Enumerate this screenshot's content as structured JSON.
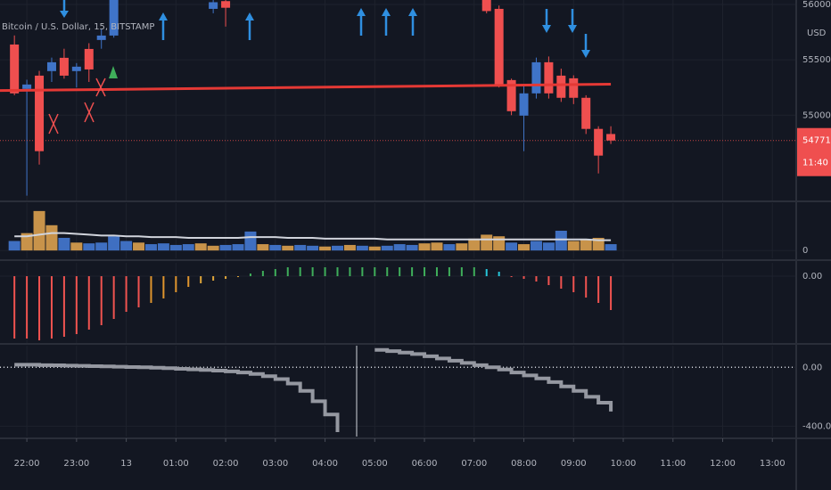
{
  "chart_data": [
    {
      "type": "candlestick",
      "title": "Bitcoin / U.S. Dollar, 15, BITSTAMP",
      "unit": "USD",
      "countdown": "11:40",
      "up_color": "#3f74c8",
      "down_color": "#ef4f4f",
      "x": [
        21.75,
        22,
        22.25,
        22.5,
        22.75,
        23,
        23.25,
        23.5,
        23.75,
        25.75,
        26,
        31.25,
        31.5,
        31.75,
        32,
        32.25,
        32.5,
        32.75,
        33,
        33.25,
        33.5,
        33.75
      ],
      "open": [
        55638,
        55237,
        55357,
        55398,
        55518,
        55398,
        55598,
        55679,
        55719,
        55960,
        56030,
        56100,
        55960,
        55317,
        54996,
        55197,
        55478,
        55357,
        55333,
        55157,
        54876,
        54830
      ],
      "high": [
        55720,
        55320,
        55400,
        55520,
        55600,
        55470,
        55650,
        55780,
        56080,
        56060,
        56060,
        56150,
        55990,
        55330,
        55260,
        55520,
        55530,
        55420,
        55360,
        55180,
        54900,
        54900
      ],
      "low": [
        55180,
        54273,
        54554,
        55300,
        55330,
        55250,
        55300,
        55600,
        55700,
        55920,
        55800,
        55920,
        55250,
        55000,
        54675,
        55150,
        55150,
        55120,
        55100,
        54830,
        54474,
        54740
      ],
      "close": [
        55197,
        55277,
        54675,
        55478,
        55357,
        55438,
        55413,
        55719,
        56080,
        56020,
        55970,
        55940,
        55277,
        55036,
        55197,
        55478,
        55197,
        55157,
        55157,
        54876,
        54635,
        54771.29
      ],
      "ma_x": [
        21.46,
        33.75
      ],
      "ma_values": [
        55222,
        55280
      ],
      "ma_color": "#e53935",
      "ylim": [
        54230,
        56040
      ],
      "yticks": [
        {
          "value": 55000,
          "label": "55000.00"
        },
        {
          "value": 55500,
          "label": "55500.00"
        },
        {
          "value": 56000,
          "label": "56000.00"
        }
      ]
    },
    {
      "type": "bar",
      "x": [
        21.75,
        22,
        22.25,
        22.5,
        22.75,
        23,
        23.25,
        23.5,
        23.75,
        24,
        24.25,
        24.5,
        24.75,
        25,
        25.25,
        25.5,
        25.75,
        26,
        26.25,
        26.5,
        26.75,
        27,
        27.25,
        27.5,
        27.75,
        28,
        28.25,
        28.5,
        28.75,
        29,
        29.25,
        29.5,
        29.75,
        30,
        30.25,
        30.5,
        30.75,
        31,
        31.25,
        31.5,
        31.75,
        32,
        32.25,
        32.5,
        32.75,
        33,
        33.25,
        33.5,
        33.75
      ],
      "values": [
        12,
        22,
        50,
        32,
        16,
        10,
        9,
        10,
        18,
        12,
        10,
        8,
        9,
        7,
        8,
        9,
        6,
        7,
        8,
        24,
        8,
        7,
        6,
        7,
        6,
        5,
        6,
        7,
        6,
        5,
        6,
        8,
        7,
        9,
        10,
        8,
        9,
        15,
        20,
        18,
        10,
        8,
        12,
        10,
        25,
        12,
        14,
        16,
        8
      ],
      "colors": [
        "#3f6fc1",
        "#c8934a",
        "#c8934a",
        "#c8934a",
        "#3f6fc1",
        "#c8934a",
        "#3f6fc1",
        "#3f6fc1",
        "#3f6fc1",
        "#3f6fc1",
        "#c8934a",
        "#3f6fc1",
        "#3f6fc1",
        "#3f6fc1",
        "#3f6fc1",
        "#c8934a",
        "#c8934a",
        "#3f6fc1",
        "#3f6fc1",
        "#3f6fc1",
        "#c8934a",
        "#3f6fc1",
        "#c8934a",
        "#3f6fc1",
        "#3f6fc1",
        "#c8934a",
        "#3f6fc1",
        "#c8934a",
        "#3f6fc1",
        "#c8934a",
        "#3f6fc1",
        "#3f6fc1",
        "#3f6fc1",
        "#c8934a",
        "#c8934a",
        "#3f6fc1",
        "#c8934a",
        "#c8934a",
        "#c8934a",
        "#c8934a",
        "#3f6fc1",
        "#c8934a",
        "#3f6fc1",
        "#3f6fc1",
        "#3f6fc1",
        "#c8934a",
        "#c8934a",
        "#c8934a",
        "#3f6fc1"
      ],
      "ma_values": [
        18,
        18,
        20,
        22,
        22,
        21,
        20,
        19,
        19,
        18,
        18,
        17,
        17,
        17,
        16,
        16,
        16,
        16,
        16,
        17,
        17,
        17,
        16,
        16,
        16,
        15,
        15,
        15,
        15,
        15,
        14,
        14,
        14,
        14,
        14,
        14,
        14,
        14,
        14,
        14,
        14,
        14,
        14,
        14,
        14,
        14,
        14,
        13,
        13
      ],
      "ma_color": "#d1d4dc",
      "ylim": [
        -10,
        60
      ],
      "yticks": [
        0
      ]
    },
    {
      "type": "histogram",
      "x": [
        21.75,
        22,
        22.25,
        22.5,
        22.75,
        23,
        23.25,
        23.5,
        23.75,
        24,
        24.25,
        24.5,
        24.75,
        25,
        25.25,
        25.5,
        25.75,
        26,
        26.25,
        26.5,
        26.75,
        27,
        27.25,
        27.5,
        27.75,
        28,
        28.25,
        28.5,
        28.75,
        29,
        29.25,
        29.5,
        29.75,
        30,
        30.25,
        30.5,
        30.75,
        31,
        31.25,
        31.5,
        31.75,
        32,
        32.25,
        32.5,
        32.75,
        33,
        33.25,
        33.5,
        33.75
      ],
      "values": [
        -70,
        -70,
        -72,
        -70,
        -68,
        -65,
        -60,
        -55,
        -48,
        -40,
        -35,
        -30,
        -25,
        -18,
        -12,
        -8,
        -5,
        -3,
        -1,
        3,
        6,
        8,
        10,
        10,
        10,
        10,
        10,
        10,
        10,
        10,
        10,
        10,
        10,
        10,
        10,
        10,
        10,
        10,
        8,
        5,
        -1,
        -3,
        -6,
        -10,
        -14,
        -18,
        -24,
        -30,
        -38
      ],
      "colors": [
        "#f05350",
        "#f05350",
        "#f05350",
        "#f05350",
        "#f05350",
        "#f05350",
        "#f05350",
        "#f05350",
        "#f05350",
        "#f05350",
        "#f05350",
        "#e0952e",
        "#e0952e",
        "#e0952e",
        "#e0952e",
        "#e0a63a",
        "#e0a63a",
        "#e0a63a",
        "#e0a63a",
        "#3fae5a",
        "#3fae5a",
        "#3fae5a",
        "#3fae5a",
        "#3fae5a",
        "#3fae5a",
        "#3fae5a",
        "#3fae5a",
        "#3fae5a",
        "#3fae5a",
        "#3fae5a",
        "#3fae5a",
        "#3fae5a",
        "#3fae5a",
        "#3fae5a",
        "#3fae5a",
        "#3fae5a",
        "#3fae5a",
        "#3fae5a",
        "#26c6da",
        "#26c6da",
        "#f05350",
        "#f05350",
        "#f05350",
        "#f05350",
        "#f05350",
        "#f05350",
        "#f05350",
        "#f05350",
        "#f05350"
      ],
      "ylim": [
        -75,
        15
      ],
      "yticks": [
        {
          "value": 0,
          "label": "0.00"
        }
      ]
    },
    {
      "type": "step",
      "color": "#9598a1",
      "baseline": 0,
      "baseline_color": "#d1d4dc",
      "x": [
        21.75,
        22,
        22.25,
        22.5,
        22.75,
        23,
        23.25,
        23.5,
        23.75,
        24,
        24.25,
        24.5,
        24.75,
        25,
        25.25,
        25.5,
        25.75,
        26,
        26.25,
        26.5,
        26.75,
        27,
        27.25,
        27.5,
        27.75,
        28,
        28.25,
        28.5,
        28.75,
        29,
        29.25,
        29.5,
        29.75,
        30,
        30.25,
        30.5,
        30.75,
        31,
        31.25,
        31.5,
        31.75,
        32,
        32.25,
        32.5,
        32.75,
        33,
        33.25,
        33.5,
        33.75
      ],
      "values": [
        18,
        18,
        15,
        14,
        12,
        10,
        8,
        6,
        4,
        2,
        0,
        -3,
        -6,
        -10,
        -14,
        -18,
        -22,
        -28,
        -35,
        -45,
        -60,
        -80,
        -110,
        -160,
        -230,
        -320,
        -440,
        null,
        null,
        118,
        110,
        100,
        90,
        75,
        60,
        45,
        30,
        15,
        0,
        -15,
        -35,
        -55,
        -75,
        -100,
        -130,
        -160,
        -200,
        -240,
        -300
      ],
      "ylim": [
        -470,
        147
      ],
      "yticks": [
        {
          "value": 0,
          "label": "0.00"
        },
        {
          "value": -400,
          "label": "-400.00"
        }
      ],
      "xlim": [
        21.46,
        37.48
      ],
      "xticks": [
        {
          "value": 22,
          "label": "22:00"
        },
        {
          "value": 23,
          "label": "23:00"
        },
        {
          "value": 24,
          "label": "13"
        },
        {
          "value": 25,
          "label": "01:00"
        },
        {
          "value": 26,
          "label": "02:00"
        },
        {
          "value": 27,
          "label": "03:00"
        },
        {
          "value": 28,
          "label": "04:00"
        },
        {
          "value": 29,
          "label": "05:00"
        },
        {
          "value": 30,
          "label": "06:00"
        },
        {
          "value": 31,
          "label": "07:00"
        },
        {
          "value": 32,
          "label": "08:00"
        },
        {
          "value": 33,
          "label": "09:00"
        },
        {
          "value": 34,
          "label": "10:00"
        },
        {
          "value": 35,
          "label": "11:00"
        },
        {
          "value": 36,
          "label": "12:00"
        },
        {
          "value": 37,
          "label": "13:00"
        }
      ]
    }
  ]
}
